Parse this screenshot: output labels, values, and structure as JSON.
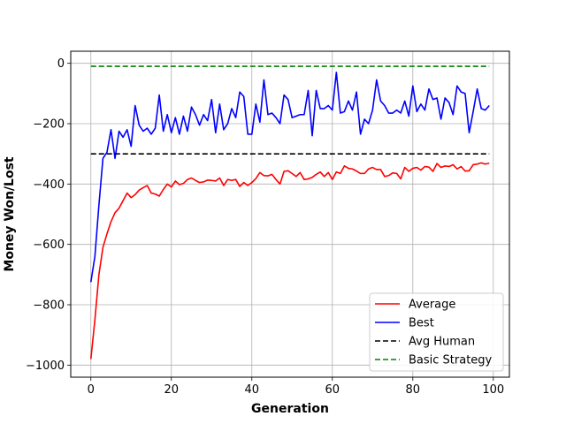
{
  "chart_data": {
    "type": "line",
    "title": "",
    "xlabel": "Generation",
    "ylabel": "Money Won/Lost",
    "xlim": [
      -5,
      104
    ],
    "ylim": [
      -1040,
      40
    ],
    "xticks": [
      0,
      20,
      40,
      60,
      80,
      100
    ],
    "yticks": [
      -1000,
      -800,
      -600,
      -400,
      -200,
      0
    ],
    "grid": true,
    "legend_position": "lower-right",
    "series": [
      {
        "name": "Average",
        "color": "#ff0000",
        "style": "solid",
        "x": [
          0,
          1,
          2,
          3,
          4,
          5,
          6,
          7,
          8,
          9,
          10,
          11,
          12,
          13,
          14,
          15,
          16,
          17,
          18,
          19,
          20,
          21,
          22,
          23,
          24,
          25,
          26,
          27,
          28,
          29,
          30,
          31,
          32,
          33,
          34,
          35,
          36,
          37,
          38,
          39,
          40,
          41,
          42,
          43,
          44,
          45,
          46,
          47,
          48,
          49,
          50,
          51,
          52,
          53,
          54,
          55,
          56,
          57,
          58,
          59,
          60,
          61,
          62,
          63,
          64,
          65,
          66,
          67,
          68,
          69,
          70,
          71,
          72,
          73,
          74,
          75,
          76,
          77,
          78,
          79,
          80,
          81,
          82,
          83,
          84,
          85,
          86,
          87,
          88,
          89,
          90,
          91,
          92,
          93,
          94,
          95,
          96,
          97,
          98,
          99
        ],
        "values": [
          -980,
          -850,
          -700,
          -610,
          -565,
          -525,
          -495,
          -480,
          -455,
          -430,
          -445,
          -435,
          -420,
          -412,
          -405,
          -430,
          -433,
          -440,
          -418,
          -400,
          -410,
          -390,
          -402,
          -398,
          -385,
          -380,
          -388,
          -395,
          -393,
          -387,
          -388,
          -390,
          -380,
          -405,
          -385,
          -388,
          -385,
          -408,
          -395,
          -405,
          -395,
          -382,
          -362,
          -372,
          -373,
          -368,
          -385,
          -400,
          -358,
          -356,
          -365,
          -375,
          -362,
          -385,
          -383,
          -378,
          -368,
          -360,
          -375,
          -362,
          -385,
          -360,
          -365,
          -340,
          -348,
          -350,
          -357,
          -365,
          -365,
          -350,
          -345,
          -352,
          -352,
          -375,
          -372,
          -363,
          -365,
          -383,
          -345,
          -358,
          -348,
          -345,
          -354,
          -342,
          -344,
          -358,
          -332,
          -345,
          -340,
          -342,
          -336,
          -350,
          -342,
          -357,
          -356,
          -336,
          -334,
          -330,
          -334,
          -331
        ]
      },
      {
        "name": "Best",
        "color": "#0000ff",
        "style": "solid",
        "x": [
          0,
          1,
          2,
          3,
          4,
          5,
          6,
          7,
          8,
          9,
          10,
          11,
          12,
          13,
          14,
          15,
          16,
          17,
          18,
          19,
          20,
          21,
          22,
          23,
          24,
          25,
          26,
          27,
          28,
          29,
          30,
          31,
          32,
          33,
          34,
          35,
          36,
          37,
          38,
          39,
          40,
          41,
          42,
          43,
          44,
          45,
          46,
          47,
          48,
          49,
          50,
          51,
          52,
          53,
          54,
          55,
          56,
          57,
          58,
          59,
          60,
          61,
          62,
          63,
          64,
          65,
          66,
          67,
          68,
          69,
          70,
          71,
          72,
          73,
          74,
          75,
          76,
          77,
          78,
          79,
          80,
          81,
          82,
          83,
          84,
          85,
          86,
          87,
          88,
          89,
          90,
          91,
          92,
          93,
          94,
          95,
          96,
          97,
          98,
          99
        ],
        "values": [
          -725,
          -640,
          -470,
          -315,
          -295,
          -220,
          -315,
          -225,
          -245,
          -220,
          -275,
          -140,
          -205,
          -225,
          -215,
          -235,
          -215,
          -105,
          -225,
          -170,
          -230,
          -180,
          -235,
          -175,
          -225,
          -145,
          -170,
          -205,
          -170,
          -190,
          -120,
          -230,
          -135,
          -220,
          -200,
          -150,
          -180,
          -95,
          -110,
          -235,
          -235,
          -135,
          -195,
          -55,
          -170,
          -165,
          -180,
          -200,
          -105,
          -120,
          -180,
          -175,
          -170,
          -170,
          -90,
          -240,
          -90,
          -150,
          -150,
          -140,
          -155,
          -30,
          -165,
          -160,
          -125,
          -155,
          -95,
          -235,
          -185,
          -200,
          -155,
          -55,
          -125,
          -140,
          -165,
          -165,
          -155,
          -165,
          -125,
          -175,
          -75,
          -160,
          -135,
          -155,
          -85,
          -120,
          -115,
          -185,
          -115,
          -130,
          -170,
          -75,
          -95,
          -100,
          -230,
          -160,
          -85,
          -150,
          -155,
          -140
        ]
      },
      {
        "name": "Avg Human",
        "color": "#000000",
        "style": "dashed",
        "x": [
          0,
          99
        ],
        "values": [
          -300,
          -300
        ]
      },
      {
        "name": "Basic Strategy",
        "color": "#008000",
        "style": "dashed",
        "x": [
          0,
          99
        ],
        "values": [
          -10,
          -10
        ]
      }
    ]
  }
}
